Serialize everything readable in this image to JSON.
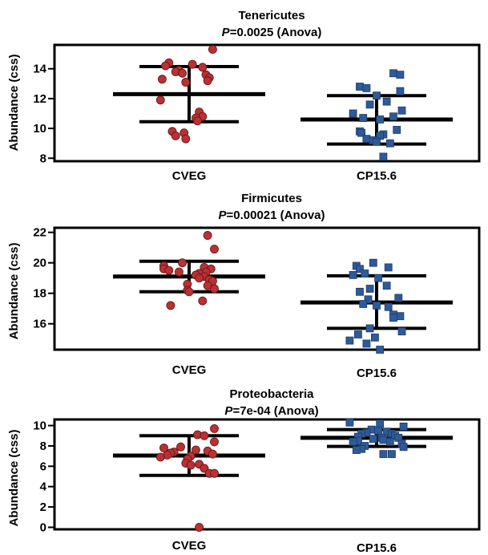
{
  "chart_data": [
    {
      "type": "scatter",
      "title": "Tenericutes",
      "subtitle_p": "P",
      "subtitle_rest": "=0.0025 (Anova)",
      "ylabel": "Abundance (css)",
      "ylim": [
        7.8,
        15.6
      ],
      "yticks": [
        "8",
        "10",
        "12",
        "14"
      ],
      "categories": [
        "CVEG",
        "CP15.6"
      ],
      "series": [
        {
          "values": [
            14.4,
            14.3,
            14.2,
            14.1,
            13.9,
            13.8,
            13.7,
            13.6,
            13.4,
            13.3,
            13.2,
            13.1,
            11.9,
            11.1,
            10.8,
            10.7,
            10.5,
            9.8,
            9.7,
            9.5,
            9.3,
            15.3
          ],
          "jitter": [
            -0.6,
            0.1,
            -0.7,
            0.4,
            -0.3,
            -0.4,
            -0.2,
            0.5,
            0.6,
            -0.8,
            0.55,
            -0.1,
            -0.85,
            0.3,
            0.4,
            0.2,
            0.25,
            -0.5,
            -0.15,
            -0.4,
            -0.1,
            0.7
          ],
          "color": "#b83235",
          "marker": "circle",
          "stats": {
            "mean": 12.3,
            "upper": 14.15,
            "lower": 10.45
          }
        },
        {
          "values": [
            13.7,
            13.6,
            12.8,
            12.7,
            12.5,
            12.2,
            11.8,
            11.6,
            11.2,
            11.0,
            10.8,
            10.7,
            10.6,
            9.9,
            9.8,
            9.7,
            9.6,
            9.5,
            9.3,
            9.2,
            9.1,
            9.0,
            8.1
          ],
          "jitter": [
            0.5,
            0.7,
            -0.5,
            -0.3,
            0.7,
            0.0,
            0.3,
            -0.2,
            0.75,
            -0.7,
            0.5,
            -0.4,
            0.1,
            0.6,
            -0.5,
            -0.45,
            0.2,
            0.1,
            -0.3,
            -0.1,
            0.0,
            0.4,
            0.2
          ],
          "color": "#2f5a99",
          "marker": "square",
          "stats": {
            "mean": 10.6,
            "upper": 12.2,
            "lower": 8.95
          }
        }
      ]
    },
    {
      "type": "scatter",
      "title": "Firmicutes",
      "subtitle_p": "P",
      "subtitle_rest": "=0.00021 (Anova)",
      "ylabel": "Abundance (css)",
      "ylim": [
        14.3,
        22.3
      ],
      "yticks": [
        "16",
        "18",
        "20",
        "22"
      ],
      "categories": [
        "CVEG",
        "CP15.6"
      ],
      "series": [
        {
          "values": [
            21.8,
            20.9,
            20.0,
            19.8,
            19.7,
            19.6,
            19.6,
            19.5,
            19.4,
            19.4,
            19.3,
            19.2,
            19.1,
            19.0,
            18.9,
            18.8,
            18.6,
            18.5,
            18.3,
            18.2,
            18.1,
            17.5,
            17.2
          ],
          "jitter": [
            0.55,
            0.75,
            -0.2,
            -0.75,
            0.45,
            0.65,
            -0.75,
            -0.6,
            -0.3,
            0.5,
            0.3,
            0.2,
            0.45,
            0.3,
            0.6,
            0.7,
            -0.05,
            0.55,
            0.75,
            -0.05,
            0.0,
            0.4,
            -0.55
          ],
          "color": "#b83235",
          "marker": "circle",
          "stats": {
            "mean": 19.1,
            "upper": 20.1,
            "lower": 18.1
          }
        },
        {
          "values": [
            20.0,
            19.8,
            19.7,
            19.6,
            19.3,
            19.2,
            19.0,
            18.5,
            18.3,
            18.1,
            17.7,
            17.6,
            17.3,
            17.2,
            17.1,
            16.6,
            16.5,
            16.4,
            15.7,
            15.5,
            15.3,
            15.1,
            14.9,
            14.7,
            14.3
          ],
          "jitter": [
            -0.1,
            -0.6,
            0.35,
            -0.5,
            -0.35,
            -0.7,
            0.05,
            0.3,
            -0.2,
            -0.5,
            0.65,
            -0.25,
            -0.4,
            0.0,
            0.35,
            0.5,
            0.7,
            0.5,
            -0.2,
            0.75,
            -0.55,
            -0.05,
            -0.8,
            -0.3,
            0.1
          ],
          "color": "#2f5a99",
          "marker": "square",
          "stats": {
            "mean": 17.4,
            "upper": 19.15,
            "lower": 15.7
          }
        }
      ]
    },
    {
      "type": "scatter",
      "title": "Proteobacteria",
      "subtitle_p": "P",
      "subtitle_rest": "=7e-04 (Anova)",
      "ylabel": "Abundance (css)",
      "ylim": [
        -0.2,
        10.6
      ],
      "yticks": [
        "0",
        "2",
        "4",
        "6",
        "8",
        "10"
      ],
      "categories": [
        "CVEG",
        "CP15.6"
      ],
      "series": [
        {
          "values": [
            9.7,
            9.1,
            9.0,
            8.4,
            7.9,
            7.8,
            7.6,
            7.5,
            7.4,
            7.3,
            7.2,
            7.1,
            7.0,
            6.9,
            6.7,
            6.3,
            6.2,
            6.1,
            5.8,
            5.3,
            5.3,
            0.0
          ],
          "jitter": [
            0.75,
            0.25,
            0.45,
            0.75,
            -0.25,
            -0.75,
            0.2,
            0.55,
            -0.45,
            -0.55,
            0.7,
            -0.65,
            0.05,
            -0.85,
            -0.05,
            -0.1,
            0.3,
            0.05,
            0.45,
            0.6,
            0.75,
            0.3
          ],
          "color": "#b83235",
          "marker": "circle",
          "stats": {
            "mean": 7.05,
            "upper": 9.0,
            "lower": 5.1
          }
        },
        {
          "values": [
            10.3,
            10.2,
            9.9,
            9.6,
            9.5,
            9.4,
            9.3,
            9.2,
            9.2,
            9.0,
            8.9,
            8.8,
            8.8,
            8.7,
            8.6,
            8.5,
            8.4,
            8.4,
            8.2,
            8.0,
            7.9,
            7.7,
            7.6,
            7.2,
            7.2
          ],
          "jitter": [
            -0.8,
            0.1,
            0.8,
            -0.15,
            0.05,
            0.3,
            -0.3,
            -0.45,
            0.45,
            0.55,
            -0.55,
            0.15,
            0.65,
            -0.1,
            0.2,
            -0.55,
            0.4,
            -0.7,
            0.75,
            -0.35,
            0.8,
            -0.45,
            -0.6,
            0.2,
            0.45
          ],
          "color": "#2f5a99",
          "marker": "square",
          "stats": {
            "mean": 8.8,
            "upper": 9.6,
            "lower": 7.95
          }
        }
      ]
    }
  ]
}
